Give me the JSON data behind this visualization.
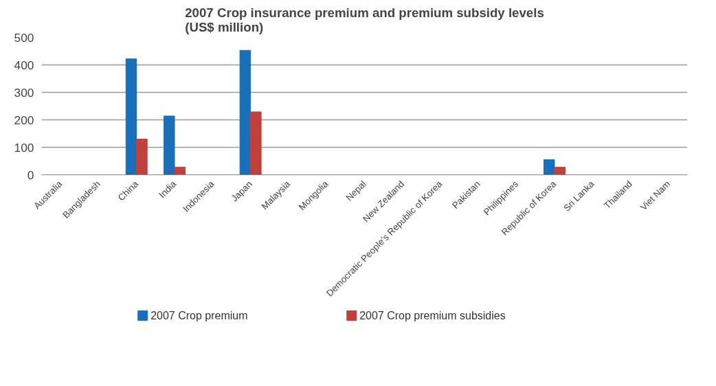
{
  "chart_data": {
    "type": "bar",
    "title": "2007 Crop insurance premium and premium subsidy levels\n(US$ million)",
    "categories": [
      "Australia",
      "Bangladesh",
      "China",
      "India",
      "Indonesia",
      "Japan",
      "Malaysia",
      "Mongolia",
      "Nepal",
      "New Zealand",
      "Democratic People’s Republic of Korea",
      "Pakistan",
      "Philippines",
      "Republic of Korea",
      "Sri Lanka",
      "Thailand",
      "Viet Nam"
    ],
    "series": [
      {
        "name": "2007 Crop premium",
        "color": "#1a6fba",
        "values": [
          null,
          null,
          422,
          214,
          null,
          453,
          null,
          null,
          null,
          null,
          null,
          null,
          null,
          55,
          null,
          null,
          null
        ]
      },
      {
        "name": "2007 Crop premium subsidies",
        "color": "#c0413b",
        "values": [
          null,
          null,
          130,
          28,
          null,
          229,
          null,
          null,
          null,
          null,
          null,
          null,
          null,
          28,
          null,
          null,
          null
        ]
      }
    ],
    "ylim": [
      0,
      500
    ],
    "yticks": [
      0,
      100,
      200,
      300,
      400,
      500
    ],
    "grid": "y",
    "legend": "bottom"
  }
}
